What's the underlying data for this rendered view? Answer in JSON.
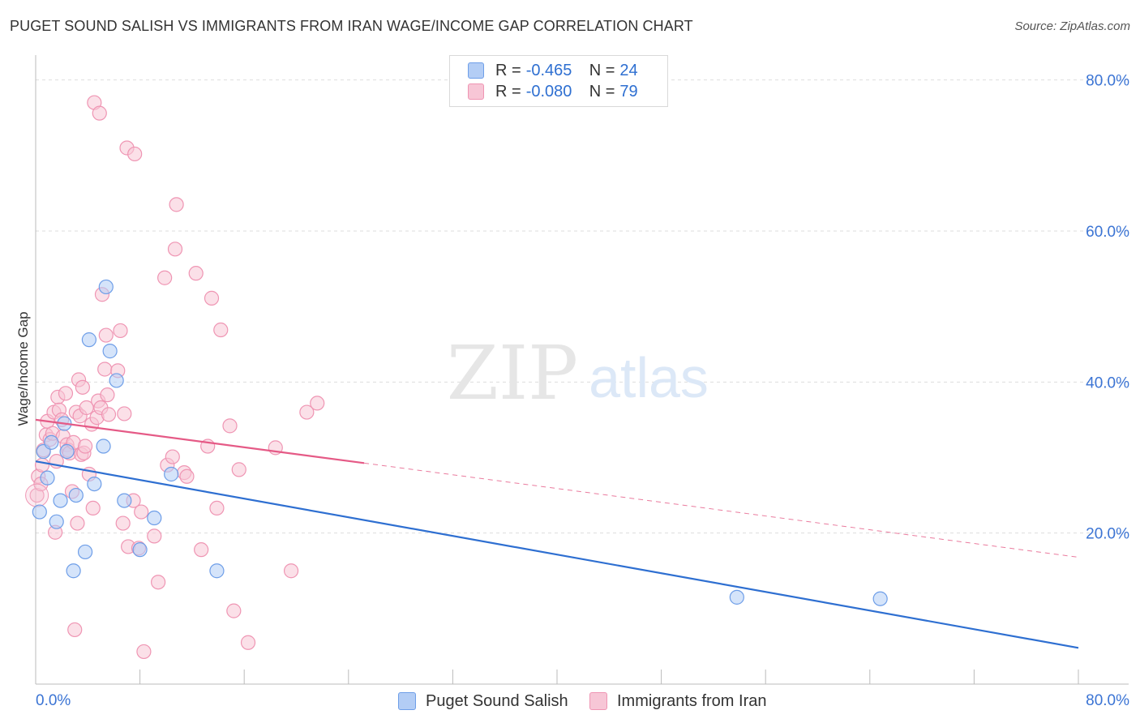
{
  "title": "PUGET SOUND SALISH VS IMMIGRANTS FROM IRAN WAGE/INCOME GAP CORRELATION CHART",
  "source": "Source: ZipAtlas.com",
  "watermark": {
    "zip": "ZIP",
    "atlas": "atlas"
  },
  "legend": {
    "series1": {
      "r_label": "R =",
      "r_value": "-0.465",
      "n_label": "N =",
      "n_value": "24"
    },
    "series2": {
      "r_label": "R =",
      "r_value": "-0.080",
      "n_label": "N =",
      "n_value": "79"
    }
  },
  "chart_data": {
    "type": "scatter",
    "title": "PUGET SOUND SALISH VS IMMIGRANTS FROM IRAN WAGE/INCOME GAP CORRELATION CHART",
    "xlabel": "",
    "ylabel": "Wage/Income Gap",
    "xlim": [
      0,
      80
    ],
    "ylim": [
      0,
      82
    ],
    "x_tick_labels": [
      {
        "value": 0,
        "label": "0.0%"
      },
      {
        "value": 80,
        "label": "80.0%"
      }
    ],
    "y_tick_labels": [
      {
        "value": 20,
        "label": "20.0%"
      },
      {
        "value": 40,
        "label": "40.0%"
      },
      {
        "value": 60,
        "label": "60.0%"
      },
      {
        "value": 80,
        "label": "80.0%"
      }
    ],
    "grid": true,
    "legend_position": "bottom-center",
    "series": [
      {
        "name": "Puget Sound Salish",
        "color": "#6e9ee8",
        "fill": "#b3cdf5",
        "line_color": "#2e6fd1",
        "r": -0.465,
        "n": 24,
        "trend": {
          "x0": 0,
          "y0": 29.5,
          "x1": 80,
          "y1": 4.8,
          "dashed_from": null
        },
        "points": [
          [
            0.3,
            22.8
          ],
          [
            0.6,
            30.8
          ],
          [
            0.9,
            27.3
          ],
          [
            1.2,
            32.0
          ],
          [
            1.6,
            21.5
          ],
          [
            1.9,
            24.3
          ],
          [
            2.2,
            34.5
          ],
          [
            2.4,
            30.8
          ],
          [
            2.9,
            15.0
          ],
          [
            3.1,
            25.0
          ],
          [
            3.8,
            17.5
          ],
          [
            4.1,
            45.6
          ],
          [
            4.5,
            26.5
          ],
          [
            5.2,
            31.5
          ],
          [
            5.4,
            52.6
          ],
          [
            5.7,
            44.1
          ],
          [
            6.2,
            40.2
          ],
          [
            6.8,
            24.3
          ],
          [
            8.0,
            17.8
          ],
          [
            9.1,
            22.0
          ],
          [
            10.4,
            27.8
          ],
          [
            13.9,
            15.0
          ],
          [
            53.8,
            11.5
          ],
          [
            64.8,
            11.3
          ]
        ]
      },
      {
        "name": "Immigrants from Iran",
        "color": "#ef95b3",
        "fill": "#f7c6d6",
        "line_color": "#e55a86",
        "r": -0.08,
        "n": 79,
        "trend": {
          "x0": 0,
          "y0": 35.0,
          "x1": 80,
          "y1": 16.8,
          "dashed_from": 25.2
        },
        "points": [
          [
            0.1,
            25.0
          ],
          [
            0.2,
            27.5
          ],
          [
            0.4,
            26.5
          ],
          [
            0.5,
            29.0
          ],
          [
            0.6,
            31.0
          ],
          [
            0.8,
            33.0
          ],
          [
            0.9,
            34.8
          ],
          [
            1.1,
            32.4
          ],
          [
            1.3,
            33.2
          ],
          [
            1.4,
            36.0
          ],
          [
            1.5,
            20.1
          ],
          [
            1.6,
            29.5
          ],
          [
            1.7,
            38.0
          ],
          [
            1.8,
            36.3
          ],
          [
            2.0,
            35.0
          ],
          [
            2.1,
            32.8
          ],
          [
            2.3,
            38.5
          ],
          [
            2.4,
            31.7
          ],
          [
            2.5,
            31.0
          ],
          [
            2.6,
            30.6
          ],
          [
            2.8,
            25.5
          ],
          [
            2.9,
            32.0
          ],
          [
            3.0,
            7.2
          ],
          [
            3.1,
            36.0
          ],
          [
            3.2,
            21.3
          ],
          [
            3.3,
            40.3
          ],
          [
            3.4,
            35.5
          ],
          [
            3.5,
            30.4
          ],
          [
            3.6,
            39.3
          ],
          [
            3.7,
            30.6
          ],
          [
            3.8,
            31.5
          ],
          [
            3.9,
            36.6
          ],
          [
            4.1,
            27.8
          ],
          [
            4.3,
            34.4
          ],
          [
            4.4,
            23.3
          ],
          [
            4.5,
            77.0
          ],
          [
            4.7,
            35.3
          ],
          [
            4.8,
            37.5
          ],
          [
            4.9,
            75.6
          ],
          [
            5.0,
            36.6
          ],
          [
            5.1,
            51.6
          ],
          [
            5.3,
            41.7
          ],
          [
            5.4,
            46.2
          ],
          [
            5.5,
            38.3
          ],
          [
            5.6,
            35.7
          ],
          [
            6.3,
            41.5
          ],
          [
            6.5,
            46.8
          ],
          [
            6.7,
            21.3
          ],
          [
            6.8,
            35.8
          ],
          [
            7.0,
            71.0
          ],
          [
            7.1,
            18.2
          ],
          [
            7.6,
            70.2
          ],
          [
            7.5,
            24.3
          ],
          [
            7.9,
            18.0
          ],
          [
            8.1,
            22.8
          ],
          [
            8.3,
            4.3
          ],
          [
            9.1,
            19.6
          ],
          [
            9.4,
            13.5
          ],
          [
            9.9,
            53.8
          ],
          [
            10.1,
            29.0
          ],
          [
            10.5,
            30.1
          ],
          [
            10.7,
            57.6
          ],
          [
            10.8,
            63.5
          ],
          [
            11.4,
            28.0
          ],
          [
            11.6,
            27.5
          ],
          [
            12.3,
            54.4
          ],
          [
            12.7,
            17.8
          ],
          [
            13.2,
            31.5
          ],
          [
            13.5,
            51.1
          ],
          [
            13.9,
            23.3
          ],
          [
            14.2,
            46.9
          ],
          [
            14.9,
            34.2
          ],
          [
            15.2,
            9.7
          ],
          [
            15.6,
            28.4
          ],
          [
            16.3,
            5.5
          ],
          [
            18.4,
            31.3
          ],
          [
            19.6,
            15.0
          ],
          [
            20.8,
            36.0
          ],
          [
            21.6,
            37.2
          ]
        ]
      }
    ]
  },
  "bottom_legend": {
    "item1": "Puget Sound Salish",
    "item2": "Immigrants from Iran"
  }
}
